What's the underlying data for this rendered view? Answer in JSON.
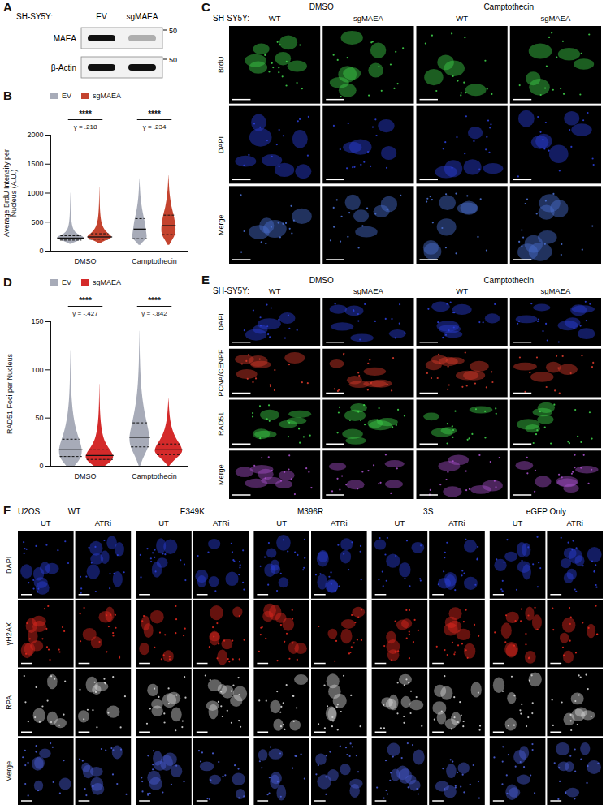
{
  "figure": {
    "A": {
      "letter": "A",
      "cell_line": "SH-SY5Y:",
      "lanes": [
        "EV",
        "sgMAEA"
      ],
      "rows": [
        {
          "label": "MAEA",
          "marker": 50,
          "intensity": [
            1,
            0.3
          ]
        },
        {
          "label": "β-Actin",
          "marker": 50,
          "intensity": [
            1,
            1
          ]
        }
      ]
    },
    "C": {
      "letter": "C",
      "cell_line": "SH-SY5Y:",
      "groups": [
        {
          "label": "DMSO",
          "columns": [
            "WT",
            "sgMAEA"
          ]
        },
        {
          "label": "Camptothecin",
          "columns": [
            "WT",
            "sgMAEA"
          ]
        }
      ],
      "rows": [
        {
          "label": "BrdU",
          "color": "#3fd14a"
        },
        {
          "label": "DAPI",
          "color": "#2b3fd6"
        },
        {
          "label": "Merge",
          "color": "#4a6fd0"
        }
      ]
    },
    "E": {
      "letter": "E",
      "cell_line": "SH-SY5Y:",
      "groups": [
        {
          "label": "DMSO",
          "columns": [
            "WT",
            "sgMAEA"
          ]
        },
        {
          "label": "Camptothecin",
          "columns": [
            "WT",
            "sgMAEA"
          ]
        }
      ],
      "rows": [
        {
          "label": "DAPI",
          "color": "#2b3fd6"
        },
        {
          "label": "PCNA/CENPF",
          "color": "#d63a2b"
        },
        {
          "label": "RAD51",
          "color": "#3fd14a"
        },
        {
          "label": "Merge",
          "color": "#a64fc9"
        }
      ]
    },
    "F": {
      "letter": "F",
      "cell_line": "U2OS:",
      "groups": [
        {
          "label": "WT",
          "columns": [
            "UT",
            "ATRi"
          ]
        },
        {
          "label": "E349K",
          "columns": [
            "UT",
            "ATRi"
          ]
        },
        {
          "label": "M396R",
          "columns": [
            "UT",
            "ATRi"
          ]
        },
        {
          "label": "3S",
          "columns": [
            "UT",
            "ATRi"
          ]
        },
        {
          "label": "eGFP Only",
          "columns": [
            "UT",
            "ATRi"
          ]
        }
      ],
      "rows": [
        {
          "label": "DAPI",
          "color": "#2b3fd6"
        },
        {
          "label": "γH2AX",
          "color": "#e0281e"
        },
        {
          "label": "RPA",
          "color": "#d8d8d8"
        },
        {
          "label": "Merge",
          "color": "#4a5ed6"
        }
      ]
    }
  },
  "chart_data": [
    {
      "panel": "B",
      "type": "violin",
      "ylabel": "Average BrdU Intensity per Nucleus (A.U.)",
      "ylim": [
        0,
        2000
      ],
      "yticks": [
        0,
        500,
        1000,
        1500,
        2000
      ],
      "grid": false,
      "legend": "top",
      "categories": [
        "DMSO",
        "Camptothecin"
      ],
      "series": [
        {
          "name": "EV",
          "color": "#a7abb8",
          "violins": [
            {
              "quartiles": [
                190,
                225,
                265
              ],
              "profile": {
                "values": [
                  120,
                  160,
                  200,
                  230,
                  260,
                  300,
                  400,
                  600,
                  800,
                  1000
                ],
                "density": [
                  0.05,
                  0.4,
                  0.9,
                  1,
                  0.8,
                  0.4,
                  0.12,
                  0.04,
                  0.02,
                  0.005
                ]
              }
            },
            {
              "quartiles": [
                215,
                380,
                560
              ],
              "profile": {
                "values": [
                  100,
                  180,
                  220,
                  300,
                  380,
                  480,
                  560,
                  700,
                  900,
                  1100,
                  1250
                ],
                "density": [
                  0.05,
                  0.35,
                  0.55,
                  0.5,
                  0.45,
                  0.4,
                  0.33,
                  0.2,
                  0.08,
                  0.03,
                  0.005
                ]
              }
            }
          ]
        },
        {
          "name": "sgMAEA",
          "color": "#c4432e",
          "violins": [
            {
              "quartiles": [
                205,
                245,
                300
              ],
              "profile": {
                "values": [
                  130,
                  170,
                  210,
                  245,
                  280,
                  330,
                  450,
                  650,
                  850,
                  1100
                ],
                "density": [
                  0.05,
                  0.35,
                  0.8,
                  0.9,
                  0.75,
                  0.45,
                  0.15,
                  0.05,
                  0.02,
                  0.005
                ]
              }
            },
            {
              "quartiles": [
                285,
                440,
                620
              ],
              "profile": {
                "values": [
                  100,
                  200,
                  290,
                  370,
                  440,
                  520,
                  620,
                  750,
                  950,
                  1150,
                  1300
                ],
                "density": [
                  0.05,
                  0.3,
                  0.5,
                  0.52,
                  0.5,
                  0.45,
                  0.38,
                  0.22,
                  0.09,
                  0.03,
                  0.005
                ]
              }
            }
          ]
        }
      ],
      "annotations": [
        {
          "category": "DMSO",
          "label": "****",
          "gamma": "γ = .218"
        },
        {
          "category": "Camptothecin",
          "label": "****",
          "gamma": "γ = .234"
        }
      ]
    },
    {
      "panel": "D",
      "type": "violin",
      "ylabel": "RAD51 Foci per Nucleus",
      "ylim": [
        0,
        150
      ],
      "yticks": [
        0,
        50,
        100,
        150
      ],
      "grid": false,
      "legend": "top",
      "categories": [
        "DMSO",
        "Camptothecin"
      ],
      "series": [
        {
          "name": "EV",
          "color": "#a7abb8",
          "violins": [
            {
              "quartiles": [
                10,
                17,
                28
              ],
              "profile": {
                "values": [
                  0,
                  5,
                  10,
                  17,
                  25,
                  35,
                  50,
                  70,
                  90,
                  120
                ],
                "density": [
                  0.3,
                  0.6,
                  0.8,
                  0.85,
                  0.7,
                  0.45,
                  0.22,
                  0.08,
                  0.03,
                  0.005
                ]
              }
            },
            {
              "quartiles": [
                20,
                30,
                45
              ],
              "profile": {
                "values": [
                  0,
                  8,
                  15,
                  22,
                  30,
                  40,
                  50,
                  65,
                  85,
                  110,
                  140
                ],
                "density": [
                  0.05,
                  0.25,
                  0.5,
                  0.7,
                  0.75,
                  0.6,
                  0.45,
                  0.25,
                  0.1,
                  0.03,
                  0.005
                ]
              }
            }
          ]
        },
        {
          "name": "sgMAEA",
          "color": "#d42a2a",
          "violins": [
            {
              "quartiles": [
                7,
                11,
                17
              ],
              "profile": {
                "values": [
                  0,
                  4,
                  8,
                  11,
                  16,
                  22,
                  30,
                  45,
                  65,
                  85
                ],
                "density": [
                  0.4,
                  0.8,
                  1,
                  1,
                  0.8,
                  0.5,
                  0.25,
                  0.08,
                  0.02,
                  0.005
                ]
              }
            },
            {
              "quartiles": [
                12,
                17,
                23
              ],
              "profile": {
                "values": [
                  0,
                  5,
                  10,
                  14,
                  17,
                  22,
                  28,
                  38,
                  50,
                  70
                ],
                "density": [
                  0.05,
                  0.35,
                  0.75,
                  1,
                  1,
                  0.85,
                  0.55,
                  0.25,
                  0.08,
                  0.005
                ]
              }
            }
          ]
        }
      ],
      "annotations": [
        {
          "category": "DMSO",
          "label": "****",
          "gamma": "γ = -.427"
        },
        {
          "category": "Camptothecin",
          "label": "****",
          "gamma": "γ = -.842"
        }
      ]
    }
  ]
}
